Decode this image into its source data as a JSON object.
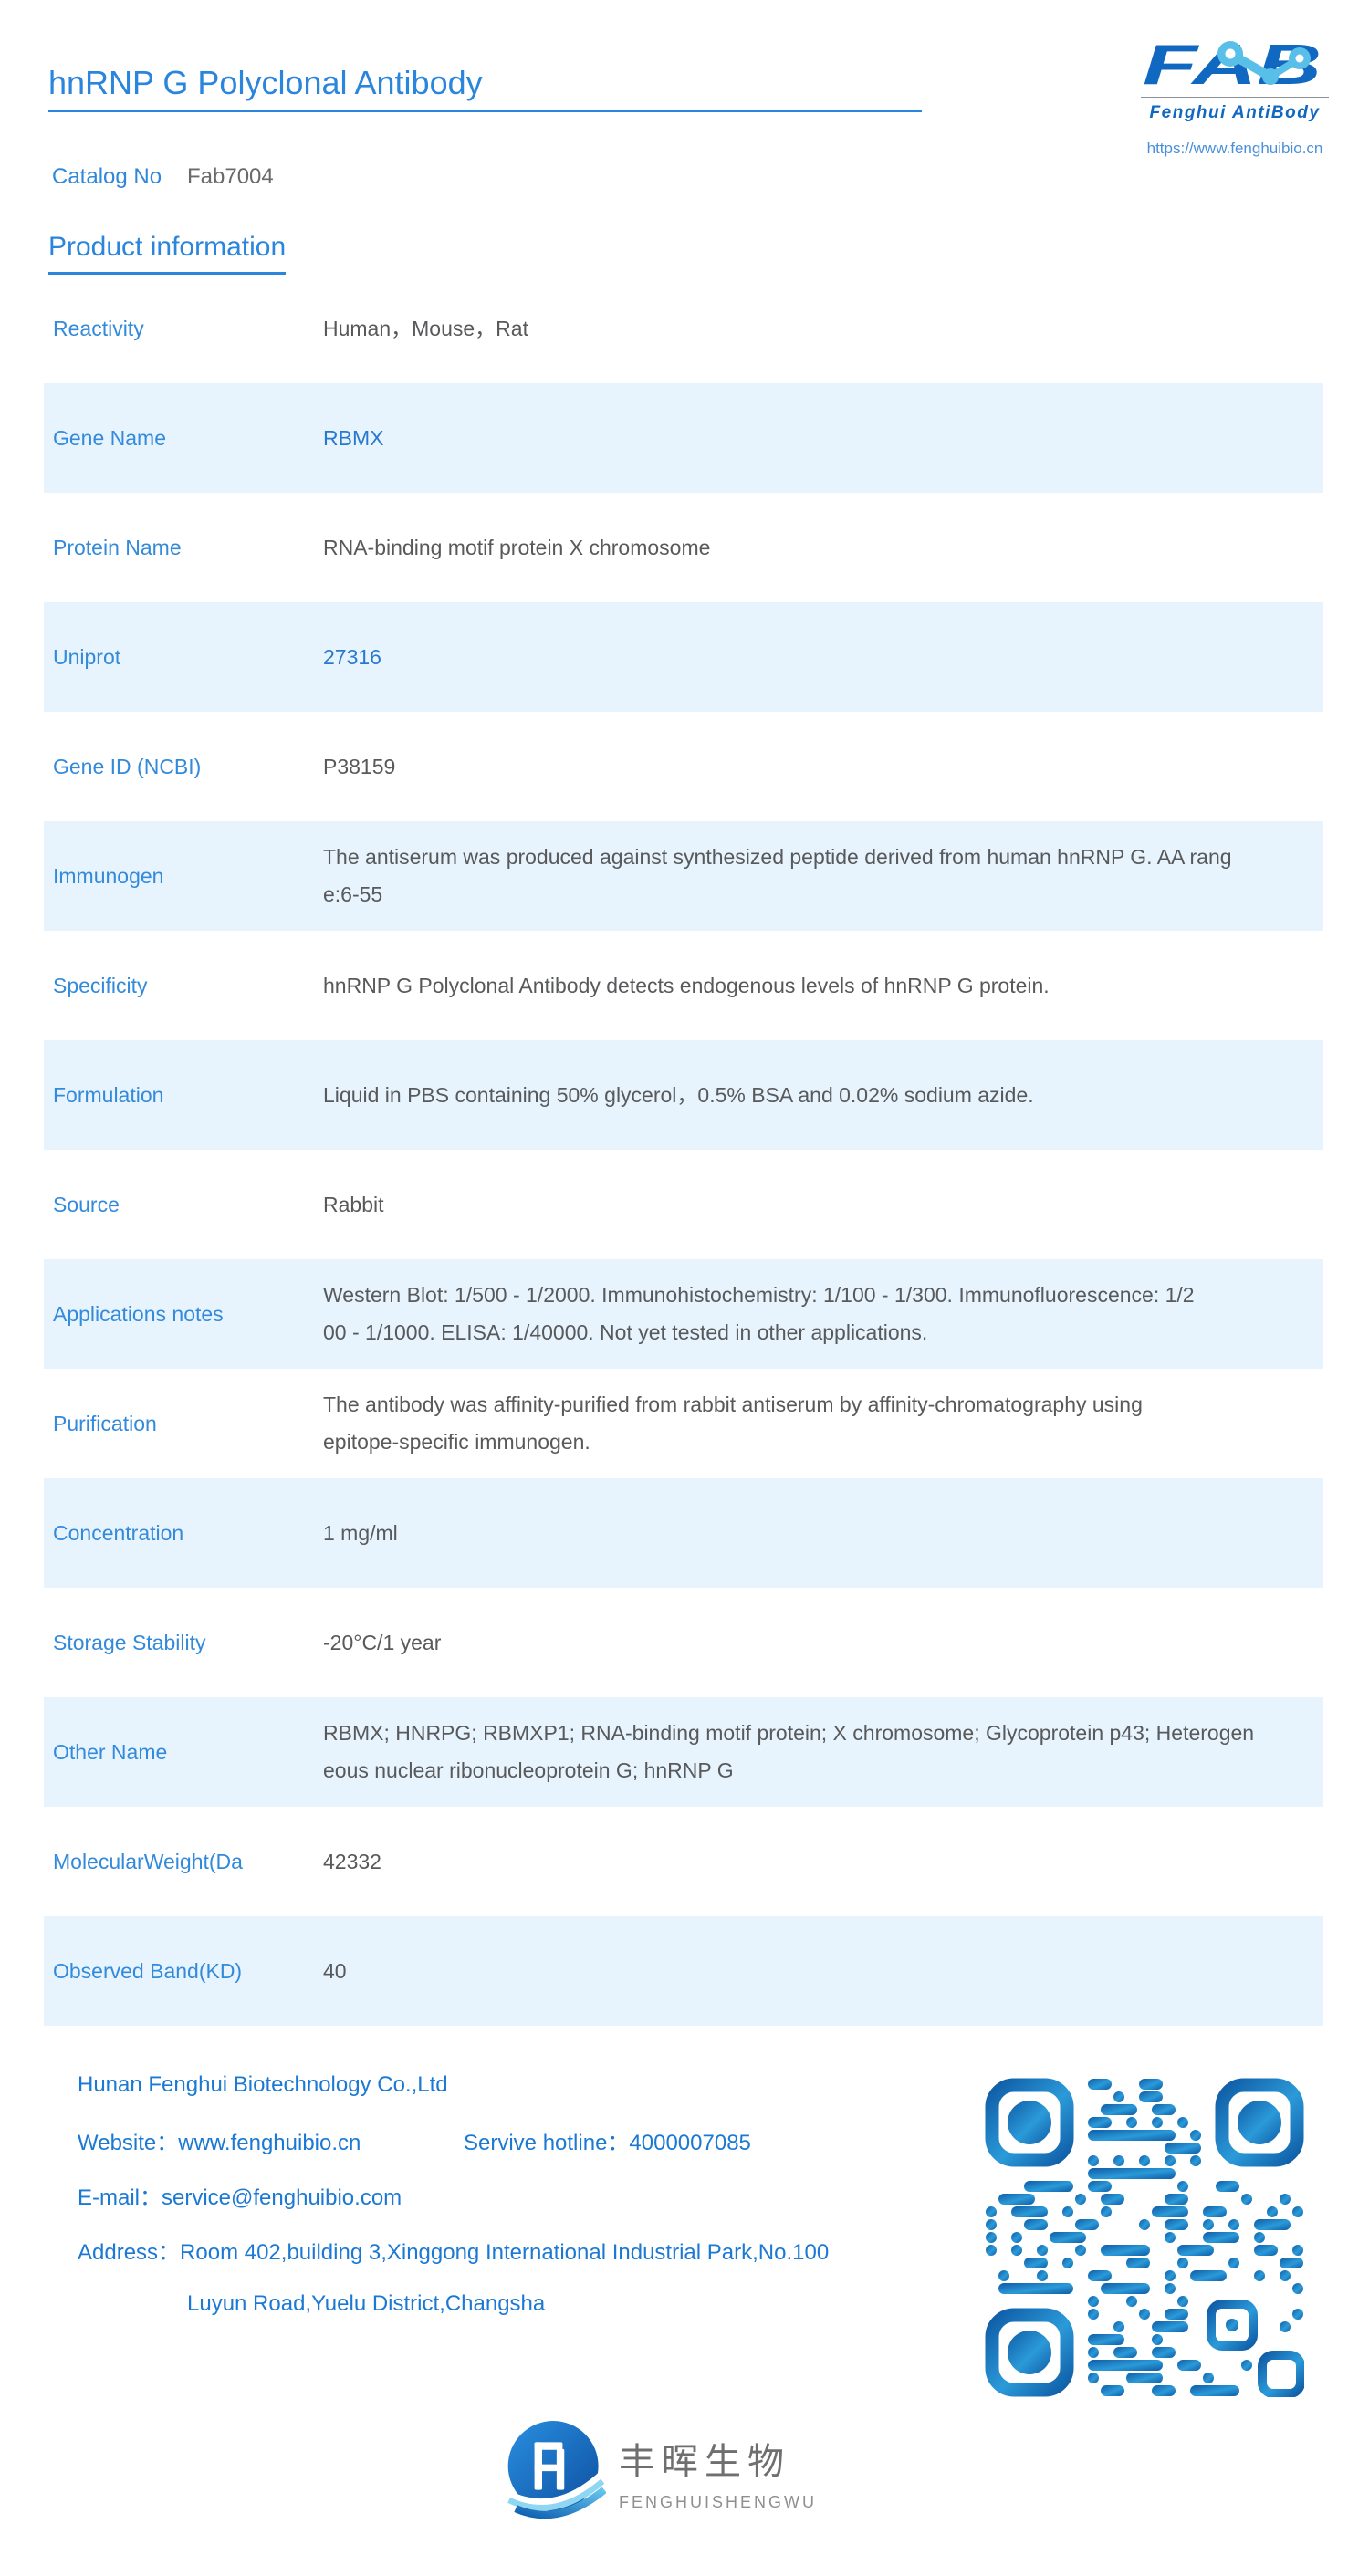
{
  "header": {
    "title": "hnRNP G Polyclonal Antibody",
    "catalog_label": "Catalog No",
    "catalog_value": "Fab7004",
    "logo": {
      "wordmark": "FAB",
      "subtitle": "Fenghui AntiBody",
      "url": "https://www.fenghuibio.cn"
    }
  },
  "section": {
    "heading": "Product information"
  },
  "table": {
    "rows": [
      {
        "label": "Reactivity",
        "value": "Human，Mouse，Rat",
        "link": false
      },
      {
        "label": "Gene Name",
        "value": "RBMX",
        "link": true
      },
      {
        "label": "Protein Name",
        "value": "RNA-binding motif protein X chromosome",
        "link": false
      },
      {
        "label": "Uniprot",
        "value": "27316",
        "link": true
      },
      {
        "label": "Gene ID (NCBI)",
        "value": "P38159",
        "link": false
      },
      {
        "label": "Immunogen",
        "value": "The antiserum was produced against synthesized peptide derived from human hnRNP G. AA rang\ne:6-55",
        "link": false
      },
      {
        "label": "Specificity",
        "value": "hnRNP G Polyclonal Antibody detects endogenous levels of hnRNP G protein.",
        "link": false
      },
      {
        "label": "Formulation",
        "value": "Liquid in PBS containing 50% glycerol，0.5% BSA and 0.02% sodium azide.",
        "link": false
      },
      {
        "label": "Source",
        "value": "Rabbit",
        "link": false
      },
      {
        "label": "Applications notes",
        "value": "Western Blot: 1/500 - 1/2000. Immunohistochemistry: 1/100 - 1/300. Immunofluorescence: 1/2\n00 - 1/1000. ELISA: 1/40000. Not yet tested in other applications.",
        "link": false
      },
      {
        "label": "Purification",
        "value": "The antibody was affinity-purified from rabbit antiserum by affinity-chromatography using\nepitope-specific immunogen.",
        "link": false
      },
      {
        "label": "Concentration",
        "value": "1 mg/ml",
        "link": false
      },
      {
        "label": "Storage Stability",
        "value": "-20°C/1 year",
        "link": false
      },
      {
        "label": "Other Name",
        "value": "RBMX; HNRPG; RBMXP1; RNA-binding motif protein;  X chromosome; Glycoprotein p43; Heterogen\neous nuclear ribonucleoprotein G; hnRNP G",
        "link": false
      },
      {
        "label": "MolecularWeight(Da",
        "value": "42332",
        "link": false
      },
      {
        "label": "Observed Band(KD)",
        "value": "40",
        "link": false
      }
    ]
  },
  "footer": {
    "company": "Hunan Fenghui Biotechnology Co.,Ltd",
    "website": "Website：www.fenghuibio.cn",
    "hotline": "Servive hotline：4000007085",
    "email": "E-mail：service@fenghuibio.com",
    "address_line1": "Address：Room 402,building 3,Xinggong International Industrial Park,No.100",
    "address_line2": "Luyun Road,Yuelu District,Changsha"
  },
  "brand": {
    "cn_name": "丰晖生物",
    "en_name": "FENGHUISHENGWU"
  },
  "icons": {
    "logo_molecule": "fab-molecule-icon",
    "qr": "qr-code",
    "brand_mark": "fenghui-circle-logo-icon"
  },
  "colors": {
    "accent_blue": "#2a85dc",
    "label_blue": "#338adb",
    "link_blue": "#2878cf",
    "row_highlight": "#e8f4fd",
    "value_gray": "#58595b",
    "footer_blue": "#1b79d4",
    "logo_deep_blue": "#1068c0",
    "logo_light_blue": "#58bfe8",
    "qr_blue_dark": "#0f5ca6",
    "qr_blue_light": "#2b9ad8"
  }
}
